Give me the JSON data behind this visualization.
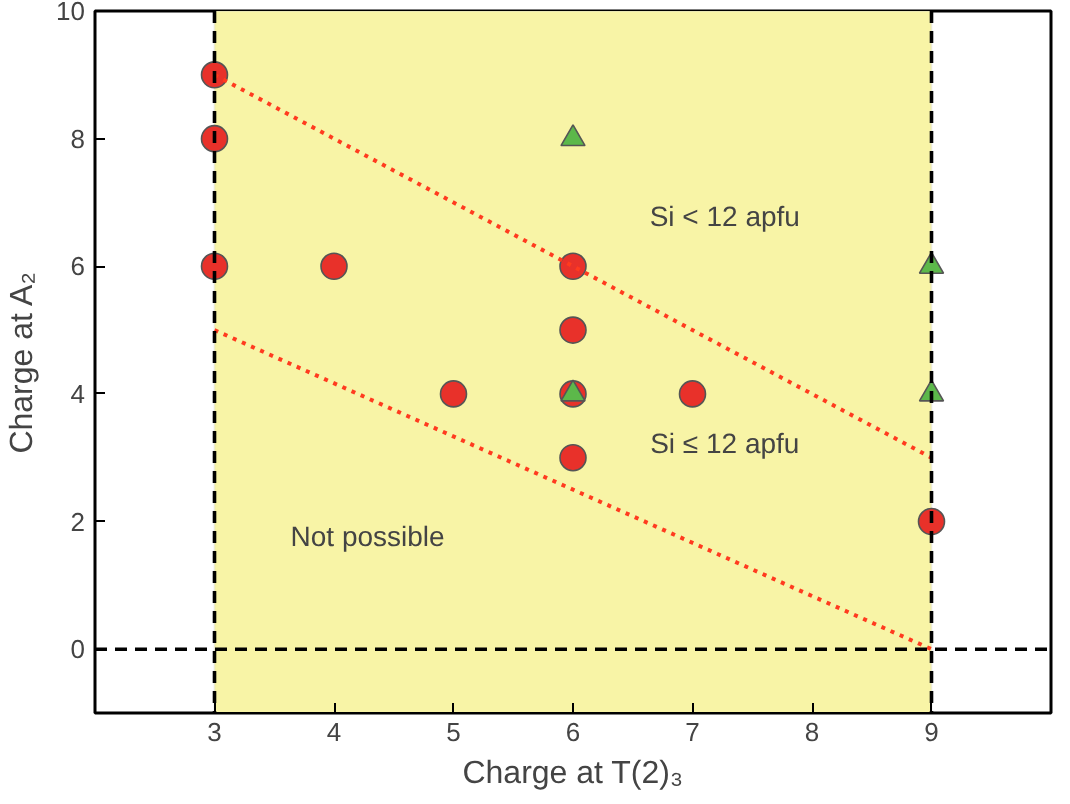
{
  "chart_data": {
    "type": "scatter",
    "xlabel": "Charge at T(2)₃",
    "ylabel": "Charge at A₂",
    "xlim": [
      2,
      10
    ],
    "ylim": [
      -1,
      10
    ],
    "xticks": [
      3,
      4,
      5,
      6,
      7,
      8,
      9
    ],
    "yticks": [
      0,
      2,
      4,
      6,
      8,
      10
    ],
    "grid": false,
    "series": [
      {
        "marker": "circle",
        "color": "#e8312a",
        "x": [
          3,
          3,
          3,
          4,
          6,
          6,
          5,
          6,
          7,
          6,
          9
        ],
        "values": [
          9,
          8,
          6,
          6,
          6,
          5,
          4,
          4,
          4,
          3,
          2
        ]
      },
      {
        "marker": "triangle",
        "color": "#5cb84a",
        "x": [
          6,
          9,
          9,
          6
        ],
        "values": [
          8,
          6,
          4,
          4
        ]
      },
      {
        "type": "line",
        "line_style": "dotted",
        "color": "#ff3b1f",
        "x": [
          3,
          9
        ],
        "values": [
          9,
          3
        ]
      },
      {
        "type": "line",
        "line_style": "dotted",
        "color": "#ff3b1f",
        "x": [
          3,
          9
        ],
        "values": [
          5,
          0
        ]
      }
    ],
    "ref_lines": [
      {
        "axis": "x",
        "value": 3,
        "color": "#000000",
        "line_style": "dashed"
      },
      {
        "axis": "x",
        "value": 9,
        "color": "#000000",
        "line_style": "dashed"
      },
      {
        "axis": "y",
        "value": 0,
        "color": "#000000",
        "line_style": "dashed"
      }
    ],
    "bands": [
      {
        "axis": "x",
        "from": 3,
        "to": 9,
        "color": "#f8f4a6"
      }
    ],
    "annotations": [
      "Si < 12 apfu",
      "Si ≤ 12 apfu",
      "Not possible"
    ]
  }
}
